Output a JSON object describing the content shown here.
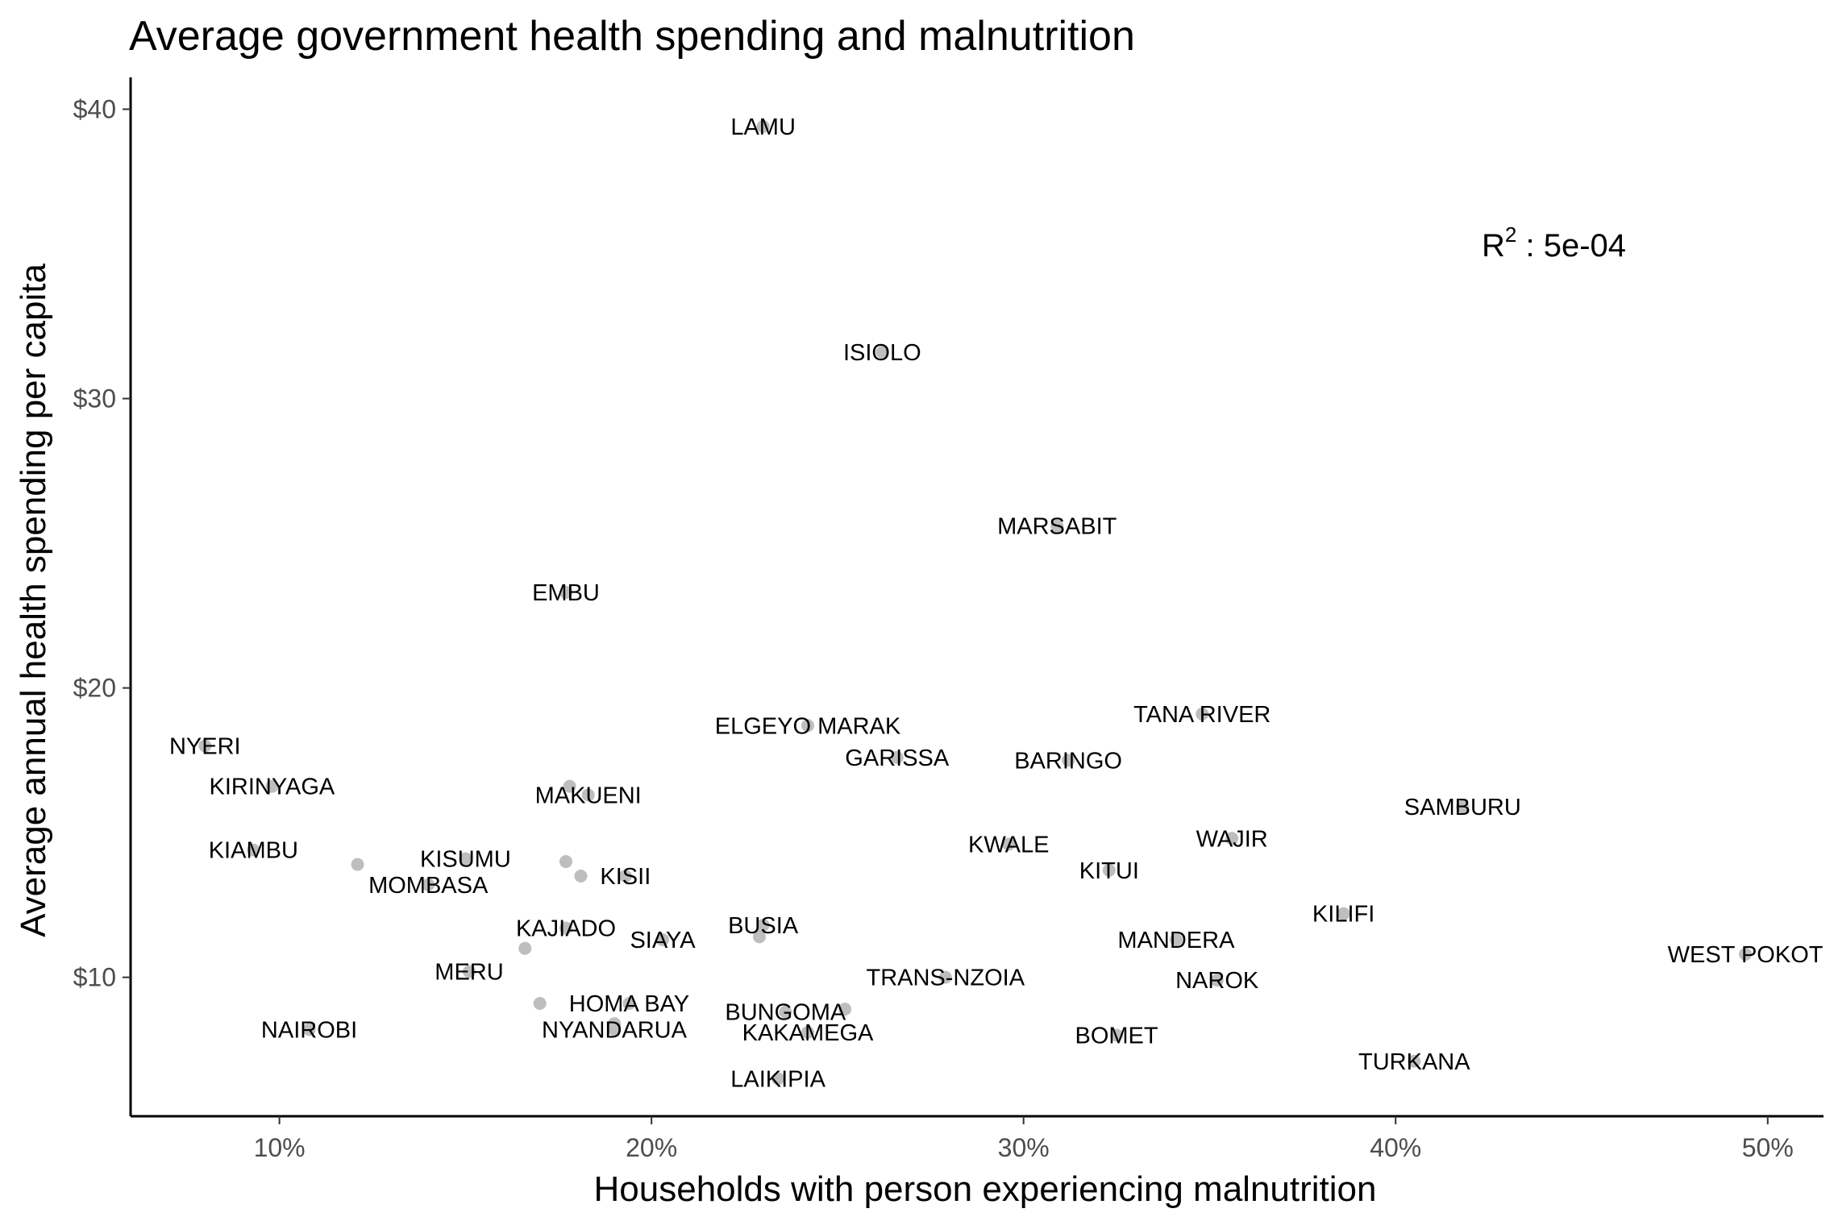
{
  "chart_data": {
    "type": "scatter",
    "title": "Average government health spending and malnutrition",
    "xlabel": "Households with person experiencing malnutrition",
    "ylabel": "Average annual health spending per capita",
    "xlim": [
      0.06,
      0.515
    ],
    "ylim": [
      5.2,
      41.1
    ],
    "x_ticks": [
      {
        "value": 0.1,
        "label": "10%"
      },
      {
        "value": 0.2,
        "label": "20%"
      },
      {
        "value": 0.3,
        "label": "30%"
      },
      {
        "value": 0.4,
        "label": "40%"
      },
      {
        "value": 0.5,
        "label": "50%"
      }
    ],
    "y_ticks": [
      {
        "value": 10,
        "label": "$10"
      },
      {
        "value": 20,
        "label": "$20"
      },
      {
        "value": 30,
        "label": "$30"
      },
      {
        "value": 40,
        "label": "$40"
      }
    ],
    "grid": false,
    "point_color": "#bebebe",
    "annotation": {
      "prefix": "R",
      "superscript": "2",
      "text": " : 5e-04"
    },
    "points": [
      {
        "label": "LAMU",
        "x": 0.23,
        "y": 39.4
      },
      {
        "label": "ISIOLO",
        "x": 0.262,
        "y": 31.6
      },
      {
        "label": "MARSABIT",
        "x": 0.309,
        "y": 25.6
      },
      {
        "label": "EMBU",
        "x": 0.177,
        "y": 23.3
      },
      {
        "label": "TANA RIVER",
        "x": 0.348,
        "y": 19.1
      },
      {
        "label": "NYERI",
        "x": 0.08,
        "y": 18.0
      },
      {
        "label": "ELGEYO MARAK",
        "x": 0.242,
        "y": 18.7
      },
      {
        "label": "GARISSA",
        "x": 0.266,
        "y": 17.6
      },
      {
        "label": "BARINGO",
        "x": 0.312,
        "y": 17.5
      },
      {
        "label": "KIRINYAGA",
        "x": 0.098,
        "y": 16.6
      },
      {
        "label": "MAKUENI",
        "x": 0.183,
        "y": 16.3
      },
      {
        "label": null,
        "x": 0.178,
        "y": 16.6
      },
      {
        "label": "SAMBURU",
        "x": 0.418,
        "y": 15.9
      },
      {
        "label": "KWALE",
        "x": 0.296,
        "y": 14.6
      },
      {
        "label": "WAJIR",
        "x": 0.356,
        "y": 14.8
      },
      {
        "label": "KIAMBU",
        "x": 0.093,
        "y": 14.4
      },
      {
        "label": null,
        "x": 0.121,
        "y": 13.9
      },
      {
        "label": "KISUMU",
        "x": 0.15,
        "y": 14.1
      },
      {
        "label": null,
        "x": 0.177,
        "y": 14.0
      },
      {
        "label": null,
        "x": 0.181,
        "y": 13.5
      },
      {
        "label": "KITUI",
        "x": 0.323,
        "y": 13.7
      },
      {
        "label": "KISII",
        "x": 0.193,
        "y": 13.5
      },
      {
        "label": "MOMBASA",
        "x": 0.14,
        "y": 13.2
      },
      {
        "label": "KILIFI",
        "x": 0.386,
        "y": 12.2
      },
      {
        "label": "BUSIA",
        "x": 0.23,
        "y": 11.8
      },
      {
        "label": null,
        "x": 0.229,
        "y": 11.4
      },
      {
        "label": "KAJIADO",
        "x": 0.177,
        "y": 11.7
      },
      {
        "label": "SIAYA",
        "x": 0.203,
        "y": 11.3
      },
      {
        "label": "MANDERA",
        "x": 0.341,
        "y": 11.3
      },
      {
        "label": null,
        "x": 0.166,
        "y": 11.0
      },
      {
        "label": "WEST POKOT",
        "x": 0.494,
        "y": 10.8
      },
      {
        "label": "MERU",
        "x": 0.151,
        "y": 10.2
      },
      {
        "label": "TRANS-NZOIA",
        "x": 0.279,
        "y": 10.0
      },
      {
        "label": "NAROK",
        "x": 0.352,
        "y": 9.9
      },
      {
        "label": null,
        "x": 0.17,
        "y": 9.1
      },
      {
        "label": "HOMA BAY",
        "x": 0.194,
        "y": 9.1
      },
      {
        "label": "BUNGOMA",
        "x": 0.236,
        "y": 8.8
      },
      {
        "label": null,
        "x": 0.252,
        "y": 8.9
      },
      {
        "label": null,
        "x": 0.19,
        "y": 8.4
      },
      {
        "label": "NYANDARUA",
        "x": 0.19,
        "y": 8.2
      },
      {
        "label": "NAIROBI",
        "x": 0.108,
        "y": 8.2
      },
      {
        "label": "KAKAMEGA",
        "x": 0.242,
        "y": 8.1
      },
      {
        "label": "BOMET",
        "x": 0.325,
        "y": 8.0
      },
      {
        "label": "TURKANA",
        "x": 0.405,
        "y": 7.1
      },
      {
        "label": "LAIKIPIA",
        "x": 0.234,
        "y": 6.5
      }
    ]
  }
}
